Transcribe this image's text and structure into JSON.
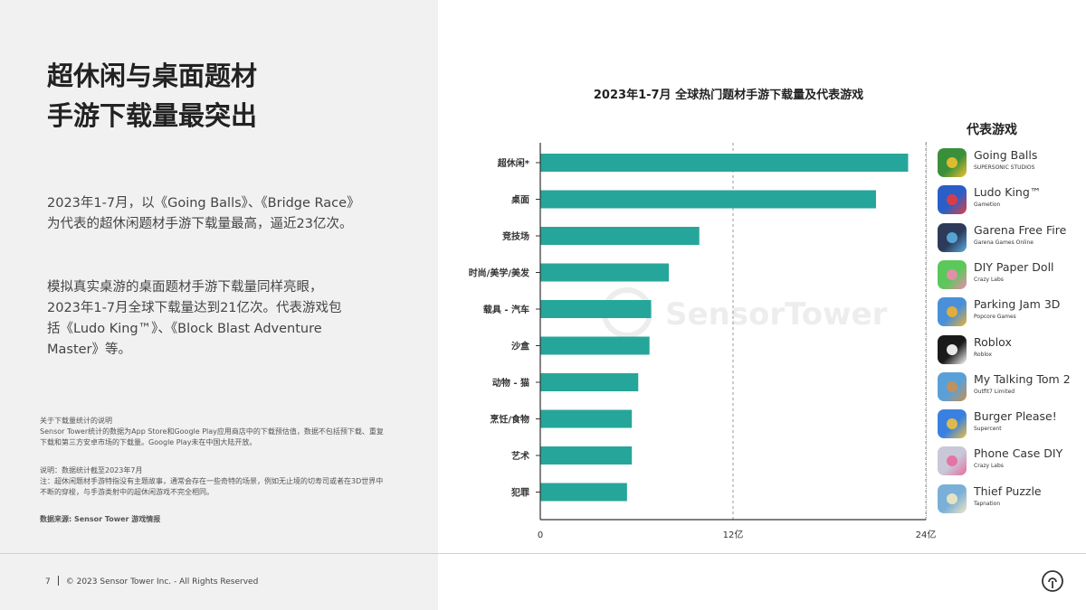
{
  "headline": [
    "超休闲与桌面题材",
    "手游下载量最突出"
  ],
  "paragraphs": [
    "2023年1-7月，以《Going Balls》、《Bridge Race》为代表的超休闲题材手游下载量最高，逼近23亿次。",
    "模拟真实桌游的桌面题材手游下载量同样亮眼，2023年1-7月全球下载量达到21亿次。代表游戏包括《Ludo King™》、《Block Blast Adventure Master》等。"
  ],
  "notes": {
    "n1_title": "关于下载量统计的说明",
    "n1_body": "Sensor Tower统计的数据为App Store和Google Play应用商店中的下载预估值，数据不包括预下载、重复下载和第三方安卓市场的下载量。Google Play未在中国大陆开放。",
    "n2_title": "说明：数据统计截至2023年7月",
    "n2_body": "注：超休闲题材手游特指没有主题故事，通常会存在一些奇特的场景，例如无止境的切寿司或者在3D世界中不断的穿梭，与手游类射中的超休闲游戏不完全相同。",
    "n3": "数据来源: Sensor Tower 游戏情报"
  },
  "footer": {
    "page": "7",
    "copyright": "© 2023 Sensor Tower Inc. - All Rights Reserved"
  },
  "watermark": "SensorTower",
  "chart_data": {
    "type": "bar",
    "orientation": "horizontal",
    "title": "2023年1-7月 全球热门题材手游下载量及代表游戏",
    "categories": [
      "超休闲*",
      "桌面",
      "竞技场",
      "时尚/美学/美发",
      "载具 - 汽车",
      "沙盒",
      "动物 - 猫",
      "烹饪/食物",
      "艺术",
      "犯罪"
    ],
    "values": [
      22.9,
      20.9,
      9.9,
      8.0,
      6.9,
      6.8,
      6.1,
      5.7,
      5.7,
      5.4
    ],
    "unit": "亿",
    "xlim": [
      0,
      24
    ],
    "xticks": [
      "0",
      "12亿",
      "24亿"
    ],
    "xtick_values": [
      0,
      12,
      24
    ],
    "grid": "dashed at 12 and 24",
    "bar_color": "#26a69a"
  },
  "games_header": "代表游戏",
  "games": [
    {
      "name": "Going Balls",
      "dev": "SUPERSONIC STUDIOS",
      "color": "#3a8f3a",
      "accent": "#f0c030"
    },
    {
      "name": "Ludo King™",
      "dev": "Gametion",
      "color": "#2b5fc7",
      "accent": "#e83b3b"
    },
    {
      "name": "Garena Free Fire",
      "dev": "Garena Games Online",
      "color": "#2d3a5a",
      "accent": "#5ab0e0"
    },
    {
      "name": "DIY Paper Doll",
      "dev": "Crazy Labs",
      "color": "#5ac85a",
      "accent": "#f08ab0"
    },
    {
      "name": "Parking Jam 3D",
      "dev": "Popcore Games",
      "color": "#4a90d8",
      "accent": "#f0b030"
    },
    {
      "name": "Roblox",
      "dev": "Roblox",
      "color": "#1a1a1a",
      "accent": "#ffffff"
    },
    {
      "name": "My Talking Tom 2",
      "dev": "Outfit7 Limited",
      "color": "#5aa0d8",
      "accent": "#c89050"
    },
    {
      "name": "Burger Please!",
      "dev": "Supercent",
      "color": "#3a80e0",
      "accent": "#f0c040"
    },
    {
      "name": "Phone Case DIY",
      "dev": "Crazy Labs",
      "color": "#c8c8d8",
      "accent": "#e86aa0"
    },
    {
      "name": "Thief Puzzle",
      "dev": "Tapnation",
      "color": "#7ab0d8",
      "accent": "#f0e8c0"
    }
  ]
}
